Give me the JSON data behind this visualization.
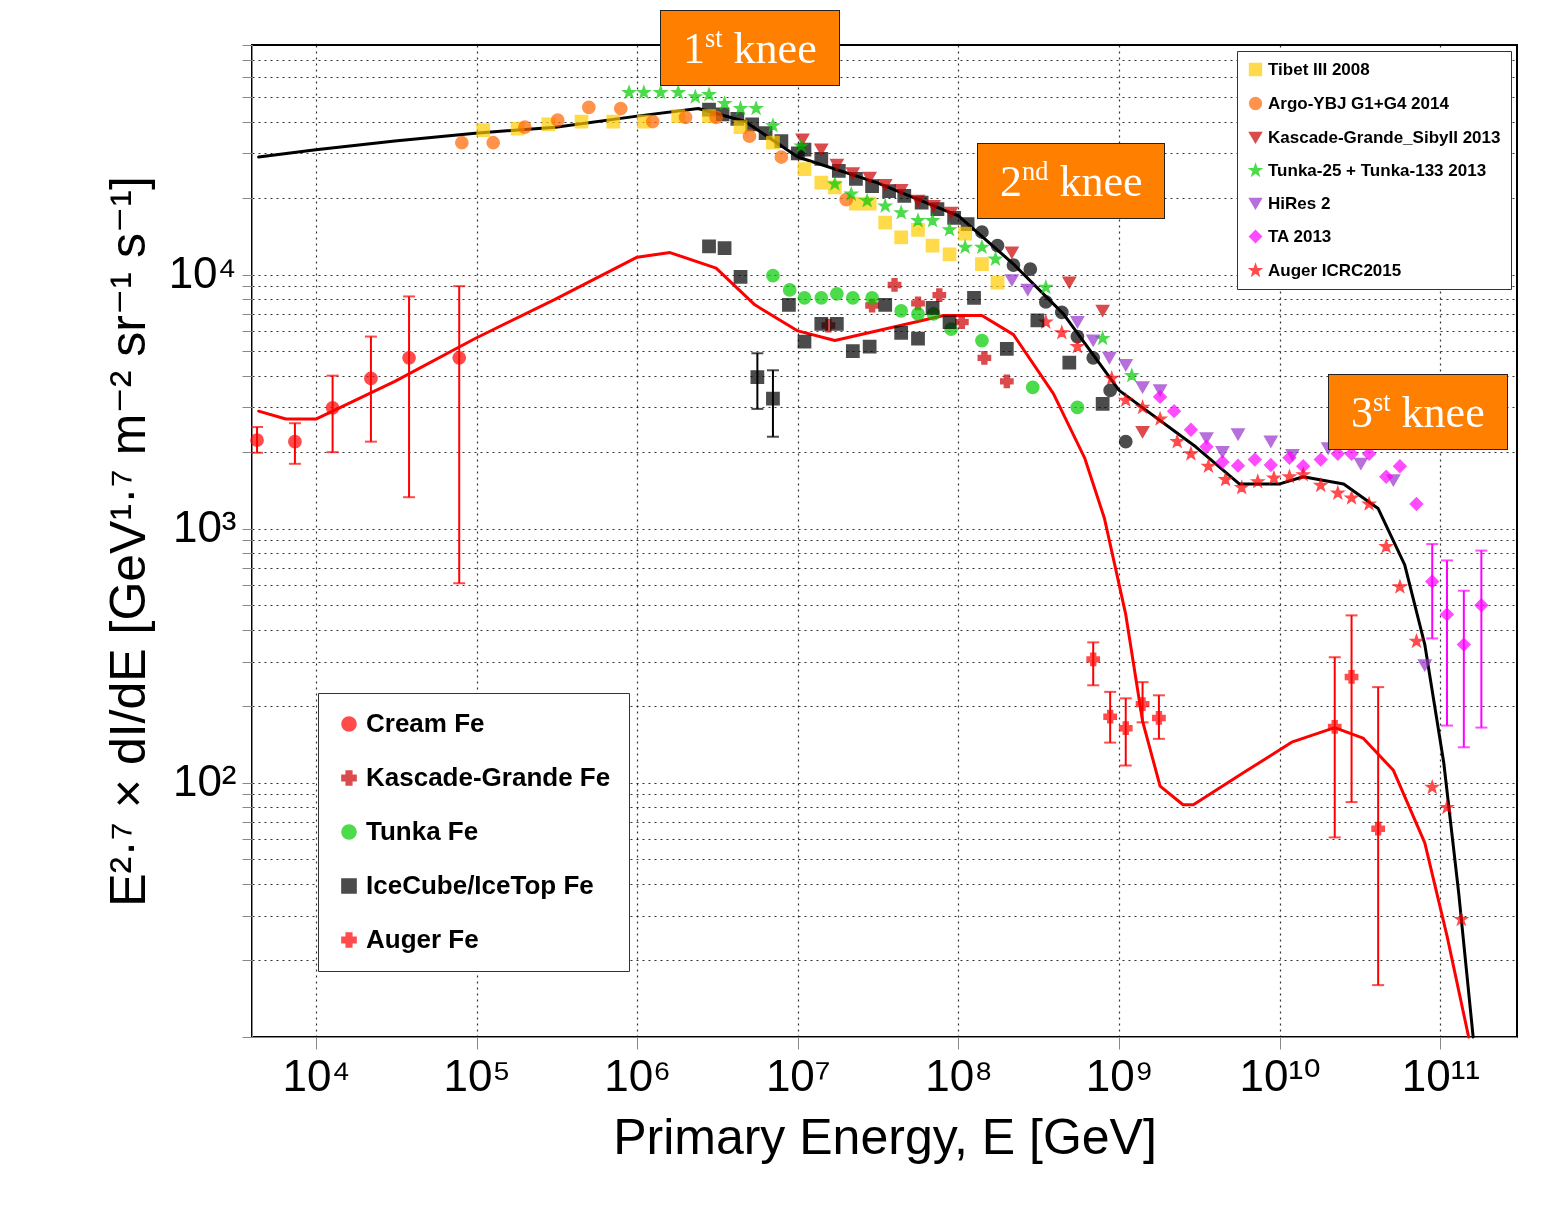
{
  "chart_data": {
    "type": "scatter",
    "xlabel": "Primary Energy, E [GeV]",
    "ylabel": "E²·⁷ × dI/dE [GeV¹·⁷ m⁻² sr⁻¹ s⁻¹]",
    "log": "xy",
    "grid": true,
    "legend": [
      "top right",
      "bottom left"
    ],
    "xlim": [
      4000,
      300000000000
    ],
    "ylim": [
      10,
      80000
    ],
    "xticks": [
      {
        "value": 10000,
        "label": "10⁴"
      },
      {
        "value": 100000,
        "label": "10⁵"
      },
      {
        "value": 1000000,
        "label": "10⁶"
      },
      {
        "value": 10000000,
        "label": "10⁷"
      },
      {
        "value": 100000000,
        "label": "10⁸"
      },
      {
        "value": 1000000000,
        "label": "10⁹"
      },
      {
        "value": 10000000000,
        "label": "10¹⁰"
      },
      {
        "value": 100000000000,
        "label": "10¹¹"
      }
    ],
    "yticks": [
      {
        "value": 10,
        "label": null
      },
      {
        "value": 20,
        "label": null
      },
      {
        "value": 30,
        "label": null
      },
      {
        "value": 40,
        "label": null
      },
      {
        "value": 50,
        "label": null
      },
      {
        "value": 60,
        "label": null
      },
      {
        "value": 70,
        "label": null
      },
      {
        "value": 80,
        "label": null
      },
      {
        "value": 90,
        "label": null
      },
      {
        "value": 100,
        "label": "10²"
      },
      {
        "value": 200,
        "label": null
      },
      {
        "value": 300,
        "label": null
      },
      {
        "value": 400,
        "label": null
      },
      {
        "value": 500,
        "label": null
      },
      {
        "value": 600,
        "label": null
      },
      {
        "value": 700,
        "label": null
      },
      {
        "value": 800,
        "label": null
      },
      {
        "value": 900,
        "label": null
      },
      {
        "value": 1000,
        "label": "10³"
      },
      {
        "value": 2000,
        "label": null
      },
      {
        "value": 3000,
        "label": null
      },
      {
        "value": 4000,
        "label": null
      },
      {
        "value": 5000,
        "label": null
      },
      {
        "value": 6000,
        "label": null
      },
      {
        "value": 7000,
        "label": null
      },
      {
        "value": 8000,
        "label": null
      },
      {
        "value": 9000,
        "label": null
      },
      {
        "value": 10000,
        "label": "10⁴"
      },
      {
        "value": 20000,
        "label": null
      },
      {
        "value": 30000,
        "label": null
      },
      {
        "value": 40000,
        "label": null
      },
      {
        "value": 50000,
        "label": null
      },
      {
        "value": 60000,
        "label": null
      },
      {
        "value": 70000,
        "label": null
      },
      {
        "value": 80000,
        "label": null
      }
    ],
    "annotations": [
      "1$^{st}$ knee",
      "2$^{nd}$ knee",
      "3$^{st}$ knee"
    ],
    "series": [
      {
        "type": "line",
        "color": "#000000",
        "line_style": "solid",
        "x": [
          4400,
          10000,
          31000,
          98000,
          310000,
          1000000,
          2400000,
          4700000,
          10000000,
          31000000,
          100000000,
          220000000,
          450000000,
          1000000000,
          3000000000,
          5600000000,
          10000000000,
          14000000000,
          25000000000,
          41000000000,
          60000000000,
          80000000000,
          105000000000,
          130000000000,
          160000000000
        ],
        "values": [
          29000,
          31000,
          33500,
          36000,
          38000,
          42000,
          45000,
          40000,
          29000,
          23000,
          17000,
          11000,
          7000,
          3500,
          2100,
          1500,
          1500,
          1600,
          1500,
          1200,
          720,
          350,
          120,
          37,
          10
        ]
      },
      {
        "type": "line",
        "color": "#ff0000",
        "line_style": "solid",
        "x": [
          4400,
          6500,
          10000,
          31000,
          98000,
          310000,
          1000000,
          1600000,
          3100000,
          5400000,
          10000000,
          17000000,
          39000000,
          81000000,
          140000000,
          220000000,
          390000000,
          610000000,
          810000000,
          1100000000,
          1400000000,
          1800000000,
          2500000000,
          2900000000,
          6000000000,
          12000000000,
          22000000000,
          33000000000,
          51000000000,
          80000000000,
          110000000000,
          150000000000
        ],
        "values": [
          2900,
          2700,
          2700,
          3800,
          5600,
          8000,
          11700,
          12200,
          10600,
          7600,
          6000,
          5500,
          6200,
          6900,
          6900,
          5800,
          3400,
          1900,
          1100,
          460,
          175,
          97,
          82,
          82,
          110,
          145,
          165,
          150,
          112,
          58,
          25,
          10
        ]
      },
      {
        "name": "Tibet III 2008",
        "color": "#ffcc00",
        "marker": "square",
        "x": [
          110000,
          180000,
          280000,
          450000,
          710000,
          1100000,
          1800000,
          2800000,
          4400000,
          7000000,
          11000000,
          14000000,
          17000000,
          23000000,
          28000000,
          35000000,
          44000000,
          56000000,
          69000000,
          88000000,
          110000000,
          140000000,
          175000000
        ],
        "values": [
          37000,
          37500,
          39000,
          40000,
          40000,
          40000,
          42000,
          42000,
          38000,
          33000,
          26000,
          23000,
          22000,
          19000,
          19000,
          16000,
          14000,
          15000,
          13000,
          12000,
          14500,
          11000,
          9300
        ]
      },
      {
        "name": "Argo-YBJ G1+G4 2014",
        "color": "#ff6600",
        "marker": "circle",
        "x": [
          81000,
          127000,
          200000,
          320000,
          500000,
          790000,
          1250000,
          2000000,
          3100000,
          5000000,
          7900000,
          20000000
        ],
        "values": [
          33000,
          33000,
          38000,
          40500,
          45500,
          45000,
          40000,
          41500,
          41500,
          35000,
          29000,
          19700
        ]
      },
      {
        "name": "Kascade-Grande_SibyII 2013",
        "color": "#cc0000",
        "marker": "triangle",
        "x": [
          10700000,
          14000000,
          17500000,
          22000000,
          28000000,
          35000000,
          44000000,
          56000000,
          70000000,
          90000000,
          215000000,
          490000000,
          790000000,
          1400000000
        ],
        "values": [
          34000,
          31000,
          27000,
          25000,
          24000,
          22500,
          21500,
          19500,
          18600,
          17500,
          12200,
          9300,
          7200,
          2400
        ]
      },
      {
        "name": "Tunka-25 + Tunka-133 2013",
        "color": "#00cc00",
        "marker": "star",
        "x": [
          890000,
          1100000,
          1400000,
          1800000,
          2300000,
          2800000,
          3500000,
          4400000,
          5500000,
          7000000,
          10500000,
          17000000,
          21500000,
          27000000,
          35000000,
          44000000,
          56000000,
          69000000,
          88000000,
          110000000,
          140000000,
          170000000,
          350000000,
          790000000,
          1200000000
        ],
        "values": [
          52000,
          52000,
          52000,
          52000,
          50000,
          51000,
          47000,
          45000,
          45000,
          38500,
          32000,
          22700,
          20700,
          19500,
          18600,
          17500,
          16300,
          16300,
          15000,
          12800,
          12800,
          11500,
          8900,
          5600,
          4000
        ]
      },
      {
        "name": "HiRes 2",
        "color": "#9933cc",
        "marker": "triangle",
        "x": [
          215000000,
          270000000,
          550000000,
          690000000,
          870000000,
          1100000000,
          1400000000,
          1800000000,
          3500000000,
          4400000000,
          5500000000,
          8800000000,
          12000000000,
          20000000000,
          32000000000,
          51000000000,
          80000000000
        ],
        "values": [
          9500,
          8700,
          6500,
          5500,
          4700,
          4400,
          3600,
          3500,
          2270,
          2000,
          2350,
          2200,
          1950,
          2070,
          1800,
          1550,
          290
        ]
      },
      {
        "name": "TA 2013",
        "color": "#ff00ff",
        "marker": "diamond",
        "x": [
          1800000000,
          2200000000,
          2800000000,
          3500000000,
          4400000000,
          5500000000,
          7000000000,
          8800000000,
          11500000000,
          14000000000,
          18000000000,
          23000000000,
          28000000000,
          36000000000,
          46000000000,
          56000000000,
          71000000000,
          89000000000,
          110000000000,
          140000000000,
          180000000000
        ],
        "values": [
          3300,
          2900,
          2450,
          2100,
          1830,
          1770,
          1870,
          1780,
          1900,
          1760,
          1870,
          1970,
          1970,
          1970,
          1600,
          1760,
          1250,
          620,
          460,
          350,
          500
        ],
        "errors": [
          null,
          null,
          null,
          null,
          null,
          null,
          null,
          null,
          null,
          null,
          null,
          null,
          null,
          null,
          null,
          null,
          null,
          [
            370,
            870
          ],
          [
            168,
            750
          ],
          [
            138,
            570
          ],
          [
            165,
            820
          ]
        ]
      },
      {
        "name": "Auger ICRC2015",
        "color": "#ff0000",
        "marker": "star",
        "x": [
          350000000,
          440000000,
          550000000,
          900000000,
          1100000000,
          1400000000,
          1800000000,
          2300000000,
          2800000000,
          3600000000,
          4600000000,
          5800000000,
          7300000000,
          9200000000,
          11500000000,
          14000000000,
          18000000000,
          23000000000,
          28000000000,
          36000000000,
          46000000000,
          56000000000,
          71000000000,
          89000000000,
          110000000000,
          135000000000
        ],
        "values": [
          6500,
          5900,
          5200,
          3900,
          3200,
          3000,
          2700,
          2200,
          1970,
          1760,
          1560,
          1450,
          1530,
          1580,
          1600,
          1630,
          1480,
          1380,
          1320,
          1250,
          850,
          590,
          360,
          96,
          80,
          29
        ]
      },
      {
        "color": "#000000",
        "marker": "square",
        "x": [
          2800000,
          3400000,
          4200000,
          5200000,
          6300000,
          7900000,
          10000000,
          11000000,
          14000000,
          18000000,
          23000000,
          29000000,
          37000000,
          46000000,
          59000000,
          74000000,
          94000000,
          114000000
        ],
        "values": [
          44500,
          42700,
          41000,
          39000,
          36000,
          33500,
          30000,
          31000,
          28500,
          25600,
          23800,
          22300,
          21300,
          20400,
          19200,
          18100,
          16700,
          15800
        ]
      },
      {
        "color": "#000000",
        "marker": "circle",
        "x": [
          140000000,
          175000000,
          220000000,
          280000000,
          350000000,
          440000000,
          550000000,
          690000000,
          880000000,
          1100000000
        ],
        "values": [
          14700,
          13000,
          10900,
          10500,
          7800,
          7100,
          5700,
          4700,
          3500,
          2200
        ]
      },
      {
        "name": "Cream Fe",
        "color": "#ff0000",
        "marker": "circle",
        "x": [
          4300,
          7400,
          12700,
          22000,
          38000,
          78000
        ],
        "values": [
          2230,
          2200,
          2990,
          3900,
          4700,
          4700
        ],
        "errors": [
          [
            1990,
            2510
          ],
          [
            1800,
            2600
          ],
          [
            2000,
            4000
          ],
          [
            2200,
            5700
          ],
          [
            1330,
            8200
          ],
          [
            610,
            9000
          ]
        ]
      },
      {
        "name": "Kascade-Grande Fe",
        "color": "#cc0000",
        "marker": "cross",
        "x": [
          15500000,
          29000000,
          40000000,
          56000000,
          76000000,
          105000000,
          145000000,
          200000000
        ],
        "values": [
          6300,
          7550,
          9100,
          7700,
          8300,
          6500,
          4700,
          3800
        ]
      },
      {
        "name": "Tunka Fe",
        "color": "#00cc00",
        "marker": "circle",
        "x": [
          7000000,
          8900000,
          11000000,
          14000000,
          17500000,
          22000000,
          29000000,
          44000000,
          56000000,
          70000000,
          90000000,
          140000000,
          290000000,
          550000000
        ],
        "values": [
          9900,
          8700,
          8100,
          8100,
          8400,
          8100,
          8100,
          7200,
          7000,
          7000,
          6100,
          5500,
          3600,
          3000
        ]
      },
      {
        "name": "IceCube/IceTop Fe",
        "color": "#000000",
        "marker": "square",
        "x": [
          2800000,
          3500000,
          4400000,
          5600000,
          7000000,
          8800000,
          11000000,
          14000000,
          17500000,
          22000000,
          28000000,
          35000000,
          44000000,
          56000000,
          69000000,
          88000000,
          125000000,
          200000000,
          310000000,
          490000000,
          790000000
        ],
        "values": [
          12900,
          12700,
          9800,
          3950,
          3250,
          7600,
          5450,
          6400,
          6400,
          5000,
          5200,
          7600,
          5900,
          5600,
          7400,
          6500,
          8100,
          5100,
          6600,
          4500,
          3100
        ],
        "errors": [
          null,
          null,
          null,
          [
            2960,
            4900
          ],
          [
            2300,
            4200
          ],
          null,
          null,
          null,
          null,
          null,
          null,
          null,
          null,
          null,
          null,
          null,
          null,
          null,
          null,
          null,
          null
        ]
      },
      {
        "name": "Auger Fe",
        "color": "#ff0000",
        "marker": "cross",
        "x": [
          690000000,
          880000000,
          1100000000,
          1400000000,
          1770000000,
          22000000000,
          28000000000,
          41000000000
        ],
        "values": [
          306,
          182,
          164,
          204,
          180,
          166,
          261,
          66
        ],
        "errors": [
          [
            242,
            357
          ],
          [
            144,
            228
          ],
          [
            117,
            215
          ],
          [
            173,
            249
          ],
          [
            149,
            221
          ],
          [
            61,
            312
          ],
          [
            84,
            456
          ],
          [
            16,
            238
          ]
        ]
      }
    ]
  }
}
